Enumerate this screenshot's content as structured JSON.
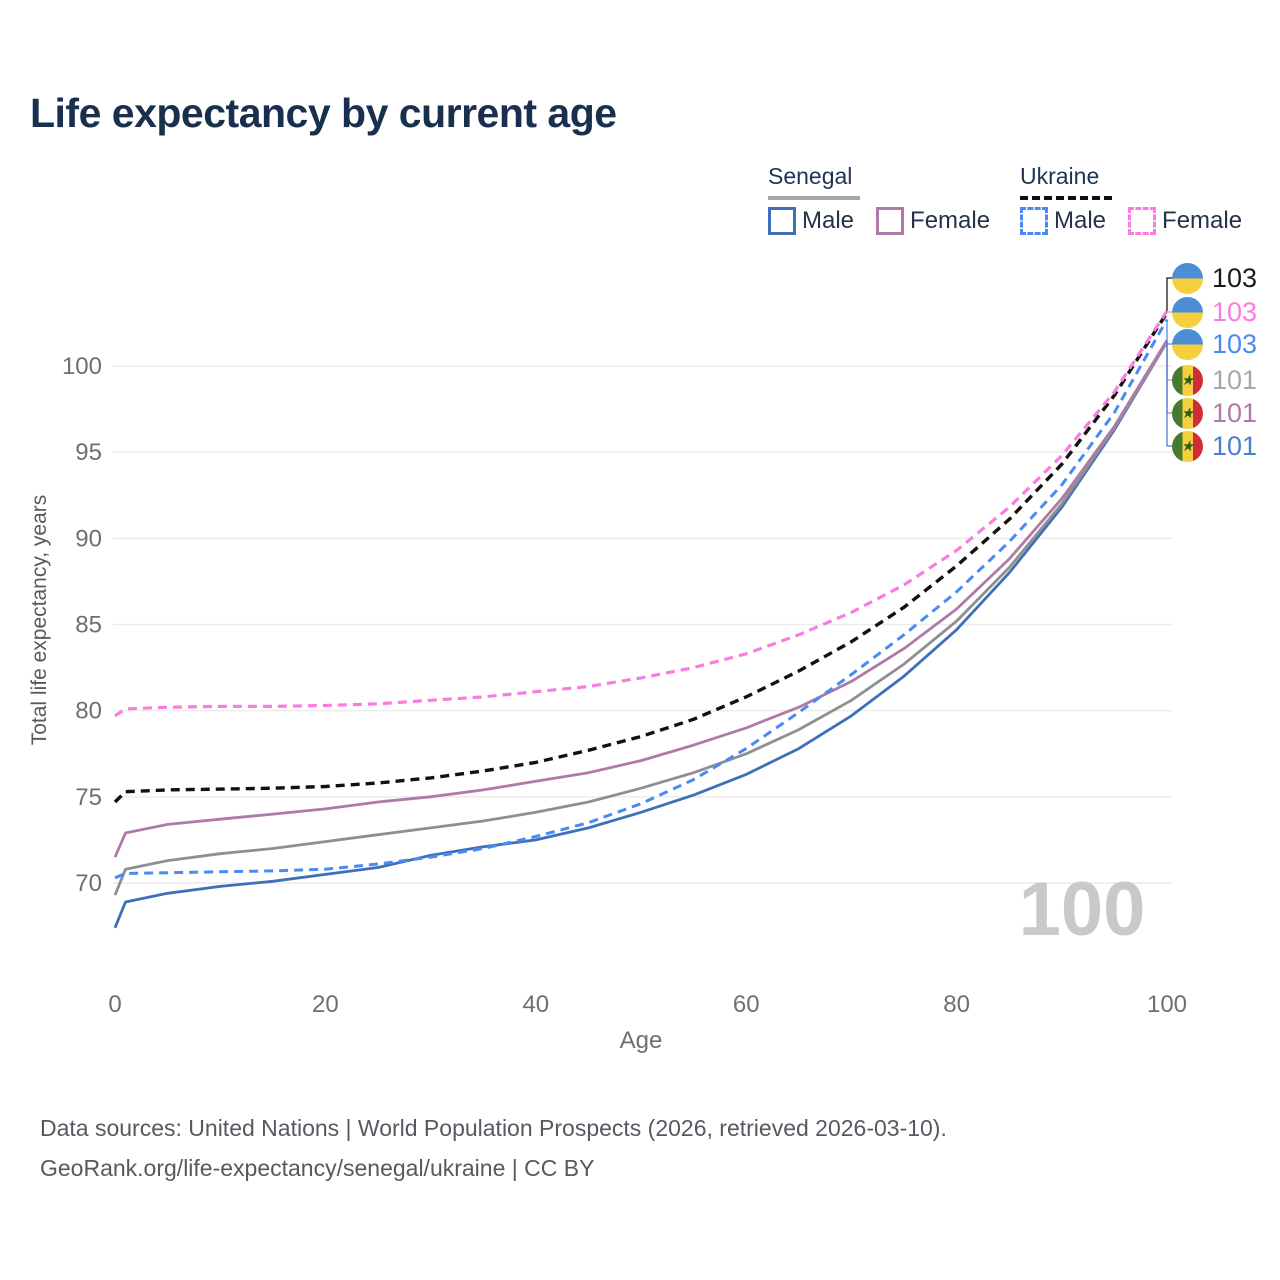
{
  "title": "Life expectancy by current age",
  "legend": {
    "groups": [
      {
        "name": "Senegal",
        "line_style": "solid",
        "underline_color": "#a8a8a8",
        "items": [
          {
            "label": "Male",
            "color": "#3d70b8"
          },
          {
            "label": "Female",
            "color": "#b07aa8"
          }
        ]
      },
      {
        "name": "Ukraine",
        "line_style": "dashed",
        "underline_color": "#111111",
        "items": [
          {
            "label": "Male",
            "color": "#4a8af4"
          },
          {
            "label": "Female",
            "color": "#fb7ce0"
          }
        ]
      }
    ]
  },
  "chart_data": {
    "type": "line",
    "title": "Life expectancy by current age",
    "xlabel": "Age",
    "ylabel": "Total life expectancy, years",
    "x_ticks": [
      0,
      20,
      40,
      60,
      80,
      100
    ],
    "y_ticks": [
      70,
      75,
      80,
      85,
      90,
      95,
      100
    ],
    "xlim": [
      0,
      100
    ],
    "ylim": [
      66,
      104
    ],
    "grid": "horizontal",
    "legend_position": "top-right",
    "x": [
      0,
      1,
      5,
      10,
      15,
      20,
      25,
      30,
      35,
      40,
      45,
      50,
      55,
      60,
      65,
      70,
      75,
      80,
      85,
      90,
      95,
      100
    ],
    "series": [
      {
        "name": "Ukraine — Total",
        "country": "Ukraine",
        "sex": "total",
        "style": "dashed",
        "color": "#111111",
        "width": 3.4,
        "values": [
          74.7,
          75.3,
          75.4,
          75.45,
          75.5,
          75.6,
          75.8,
          76.1,
          76.5,
          77.0,
          77.7,
          78.5,
          79.5,
          80.8,
          82.3,
          84.0,
          86.0,
          88.4,
          91.1,
          94.3,
          98.3,
          103.1
        ]
      },
      {
        "name": "Ukraine — Female",
        "country": "Ukraine",
        "sex": "female",
        "style": "dashed",
        "color": "#fb7ce0",
        "width": 3.2,
        "values": [
          79.7,
          80.1,
          80.2,
          80.25,
          80.25,
          80.3,
          80.4,
          80.6,
          80.8,
          81.1,
          81.4,
          81.9,
          82.5,
          83.3,
          84.4,
          85.7,
          87.3,
          89.3,
          91.8,
          94.8,
          98.5,
          103.2
        ]
      },
      {
        "name": "Senegal — Male",
        "country": "Senegal",
        "sex": "male",
        "style": "solid",
        "color": "#3d70b8",
        "width": 2.8,
        "values": [
          67.4,
          68.9,
          69.4,
          69.8,
          70.1,
          70.5,
          70.9,
          71.6,
          72.1,
          72.5,
          73.2,
          74.1,
          75.1,
          76.3,
          77.8,
          79.7,
          82.0,
          84.7,
          88.0,
          91.8,
          96.3,
          101.4
        ]
      },
      {
        "name": "Senegal — Total",
        "country": "Senegal",
        "sex": "total",
        "style": "solid",
        "color": "#8f8f8f",
        "width": 2.8,
        "values": [
          69.3,
          70.8,
          71.3,
          71.7,
          72.0,
          72.4,
          72.8,
          73.2,
          73.6,
          74.1,
          74.7,
          75.5,
          76.4,
          77.5,
          78.9,
          80.6,
          82.7,
          85.2,
          88.3,
          92.0,
          96.4,
          101.4
        ]
      },
      {
        "name": "Senegal — Female",
        "country": "Senegal",
        "sex": "female",
        "style": "solid",
        "color": "#b07aa8",
        "width": 2.8,
        "values": [
          71.5,
          72.9,
          73.4,
          73.7,
          74.0,
          74.3,
          74.7,
          75.0,
          75.4,
          75.9,
          76.4,
          77.1,
          78.0,
          79.0,
          80.2,
          81.7,
          83.6,
          85.9,
          88.8,
          92.3,
          96.5,
          101.5
        ]
      },
      {
        "name": "Ukraine — Male",
        "country": "Ukraine",
        "sex": "male",
        "style": "dashed",
        "color": "#4a8af4",
        "width": 3.0,
        "values": [
          70.3,
          70.55,
          70.6,
          70.65,
          70.7,
          70.8,
          71.1,
          71.5,
          72.0,
          72.7,
          73.5,
          74.6,
          76.0,
          77.8,
          79.9,
          82.1,
          84.4,
          86.9,
          89.8,
          93.1,
          97.3,
          102.7
        ]
      }
    ],
    "annotation": {
      "text": "100"
    }
  },
  "end_labels": [
    {
      "series": "Ukraine — Total",
      "flag": "ukraine",
      "value": "103",
      "color": "#1a1a1a"
    },
    {
      "series": "Ukraine — Female",
      "flag": "ukraine",
      "value": "103",
      "color": "#fb7ce0"
    },
    {
      "series": "Ukraine — Male",
      "flag": "ukraine",
      "value": "103",
      "color": "#4a8af4"
    },
    {
      "series": "Senegal — Total",
      "flag": "senegal",
      "value": "101",
      "color": "#a8a8a8"
    },
    {
      "series": "Senegal — Female",
      "flag": "senegal",
      "value": "101",
      "color": "#b07aa8"
    },
    {
      "series": "Senegal — Male",
      "flag": "senegal",
      "value": "101",
      "color": "#4a7fd0"
    }
  ],
  "colors": {
    "grid": "#ececec",
    "tick_text": "#6f6f6f",
    "axis_title": "#5a5a5a",
    "watermark": "#c9c9c9",
    "ukraine_flag_blue": "#4a8fd4",
    "ukraine_flag_yellow": "#f6cf3f",
    "senegal_flag_green": "#47792e",
    "senegal_flag_yellow": "#f6cf3f",
    "senegal_flag_red": "#cf2e36"
  },
  "footer": {
    "line1": "Data sources: United Nations | World Population Prospects (2026, retrieved 2026-03-10).",
    "line2": "GeoRank.org/life-expectancy/senegal/ukraine | CC BY"
  }
}
